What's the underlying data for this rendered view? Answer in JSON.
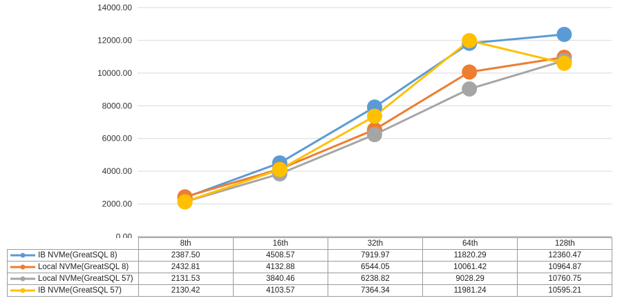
{
  "chart_data": {
    "type": "line",
    "categories": [
      "8th",
      "16th",
      "32th",
      "64th",
      "128th"
    ],
    "ylim": [
      0,
      14000
    ],
    "yticks": [
      "0.00",
      "2000.00",
      "4000.00",
      "6000.00",
      "8000.00",
      "10000.00",
      "12000.00",
      "14000.00"
    ],
    "grid": true,
    "legend": "data-table",
    "series": [
      {
        "name": "IB NVMe(GreatSQL 8)",
        "color": "#5b9bd5",
        "values": [
          2387.5,
          4508.57,
          7919.97,
          11820.29,
          12360.47
        ],
        "labels": [
          "2387.50",
          "4508.57",
          "7919.97",
          "11820.29",
          "12360.47"
        ]
      },
      {
        "name": "Local NVMe(GreatSQL 8)",
        "color": "#ed7d31",
        "values": [
          2432.81,
          4132.88,
          6544.05,
          10061.42,
          10964.87
        ],
        "labels": [
          "2432.81",
          "4132.88",
          "6544.05",
          "10061.42",
          "10964.87"
        ]
      },
      {
        "name": "Local NVMe(GreatSQL 57)",
        "color": "#a5a5a5",
        "values": [
          2131.53,
          3840.46,
          6238.82,
          9028.29,
          10760.75
        ],
        "labels": [
          "2131.53",
          "3840.46",
          "6238.82",
          "9028.29",
          "10760.75"
        ]
      },
      {
        "name": "IB NVMe(GreatSQL 57)",
        "color": "#ffc000",
        "values": [
          2130.42,
          4103.57,
          7364.34,
          11981.24,
          10595.21
        ],
        "labels": [
          "2130.42",
          "4103.57",
          "7364.34",
          "11981.24",
          "10595.21"
        ]
      }
    ]
  }
}
